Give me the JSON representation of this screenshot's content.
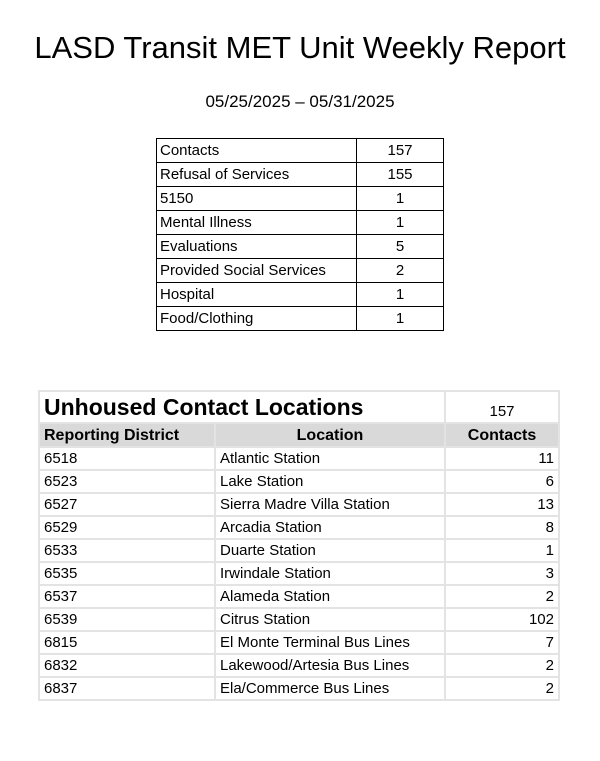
{
  "title": "LASD Transit MET Unit Weekly Report",
  "date_range": "05/25/2025 – 05/31/2025",
  "summary": [
    {
      "label": "Contacts",
      "value": "157"
    },
    {
      "label": "Refusal of Services",
      "value": "155"
    },
    {
      "label": "5150",
      "value": "1"
    },
    {
      "label": "Mental Illness",
      "value": "1"
    },
    {
      "label": "Evaluations",
      "value": "5"
    },
    {
      "label": "Provided Social Services",
      "value": "2"
    },
    {
      "label": "Hospital",
      "value": "1"
    },
    {
      "label": "Food/Clothing",
      "value": "1"
    }
  ],
  "locations": {
    "title": "Unhoused Contact Locations",
    "total": "157",
    "headers": [
      "Reporting District",
      "Location",
      "Contacts"
    ],
    "rows": [
      [
        "6518",
        "Atlantic Station",
        "11"
      ],
      [
        "6523",
        "Lake Station",
        "6"
      ],
      [
        "6527",
        "Sierra Madre Villa Station",
        "13"
      ],
      [
        "6529",
        "Arcadia Station",
        "8"
      ],
      [
        "6533",
        "Duarte Station",
        "1"
      ],
      [
        "6535",
        "Irwindale Station",
        "3"
      ],
      [
        "6537",
        "Alameda Station",
        "2"
      ],
      [
        "6539",
        "Citrus Station",
        "102"
      ],
      [
        "6815",
        "El Monte Terminal Bus Lines",
        "7"
      ],
      [
        "6832",
        "Lakewood/Artesia Bus Lines",
        "2"
      ],
      [
        "6837",
        "Ela/Commerce Bus Lines",
        "2"
      ]
    ]
  }
}
